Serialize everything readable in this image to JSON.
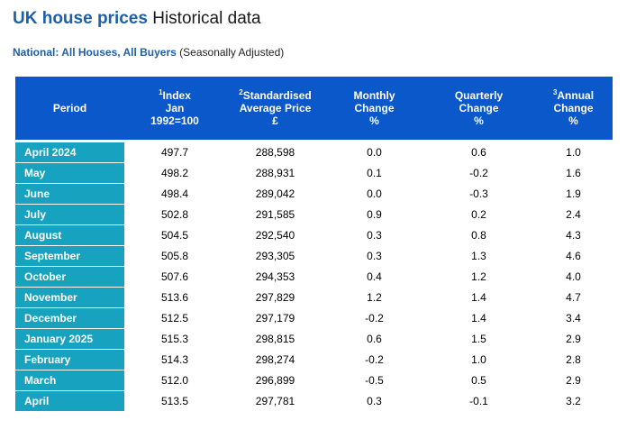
{
  "header": {
    "title_strong": "UK house prices",
    "title_rest": "Historical data",
    "subtitle_strong": "National: All Houses, All Buyers",
    "subtitle_rest": "(Seasonally Adjusted)"
  },
  "table": {
    "columns": [
      {
        "sup": "",
        "lines": [
          "Period"
        ]
      },
      {
        "sup": "1",
        "lines": [
          "Index",
          "Jan",
          "1992=100"
        ]
      },
      {
        "sup": "2",
        "lines": [
          "Standardised",
          "Average Price",
          "£"
        ]
      },
      {
        "sup": "",
        "lines": [
          "Monthly",
          "Change",
          "%"
        ]
      },
      {
        "sup": "",
        "lines": [
          "Quarterly",
          "Change",
          "%"
        ]
      },
      {
        "sup": "3",
        "lines": [
          "Annual",
          "Change",
          "%"
        ]
      }
    ],
    "rows": [
      {
        "period": "April 2024",
        "index": "497.7",
        "price": "288,598",
        "monthly": "0.0",
        "quarterly": "0.6",
        "annual": "1.0"
      },
      {
        "period": "May",
        "index": "498.2",
        "price": "288,931",
        "monthly": "0.1",
        "quarterly": "-0.2",
        "annual": "1.6"
      },
      {
        "period": "June",
        "index": "498.4",
        "price": "289,042",
        "monthly": "0.0",
        "quarterly": "-0.3",
        "annual": "1.9"
      },
      {
        "period": "July",
        "index": "502.8",
        "price": "291,585",
        "monthly": "0.9",
        "quarterly": "0.2",
        "annual": "2.4"
      },
      {
        "period": "August",
        "index": "504.5",
        "price": "292,540",
        "monthly": "0.3",
        "quarterly": "0.8",
        "annual": "4.3"
      },
      {
        "period": "September",
        "index": "505.8",
        "price": "293,305",
        "monthly": "0.3",
        "quarterly": "1.3",
        "annual": "4.6"
      },
      {
        "period": "October",
        "index": "507.6",
        "price": "294,353",
        "monthly": "0.4",
        "quarterly": "1.2",
        "annual": "4.0"
      },
      {
        "period": "November",
        "index": "513.6",
        "price": "297,829",
        "monthly": "1.2",
        "quarterly": "1.4",
        "annual": "4.7"
      },
      {
        "period": "December",
        "index": "512.5",
        "price": "297,179",
        "monthly": "-0.2",
        "quarterly": "1.4",
        "annual": "3.4"
      },
      {
        "period": "January 2025",
        "index": "515.3",
        "price": "298,815",
        "monthly": "0.6",
        "quarterly": "1.5",
        "annual": "2.9"
      },
      {
        "period": "February",
        "index": "514.3",
        "price": "298,274",
        "monthly": "-0.2",
        "quarterly": "1.0",
        "annual": "2.8"
      },
      {
        "period": "March",
        "index": "512.0",
        "price": "296,899",
        "monthly": "-0.5",
        "quarterly": "0.5",
        "annual": "2.9"
      },
      {
        "period": "April",
        "index": "513.5",
        "price": "297,781",
        "monthly": "0.3",
        "quarterly": "-0.1",
        "annual": "3.2"
      }
    ]
  },
  "colors": {
    "title_blue": "#1f5fa8",
    "header_blue": "#0a58c9",
    "period_teal": "#17a3c0"
  }
}
